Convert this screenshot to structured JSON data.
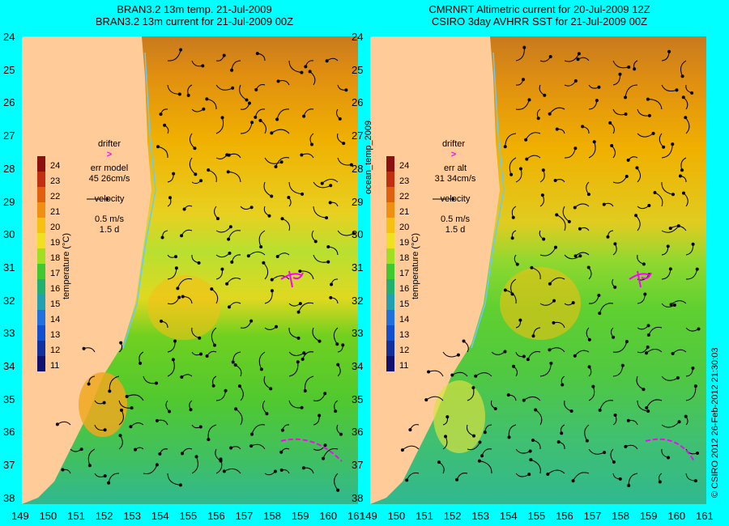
{
  "left": {
    "title_line1": "BRAN3.2 13m temp. 21-Jul-2009",
    "title_line2": "BRAN3.2 13m current for 21-Jul-2009 00Z",
    "drifter_label": "drifter",
    "err_label": "err model",
    "err_values": "45 26cm/s",
    "velocity_label": "velocity",
    "velocity_scale": "0.5 m/s",
    "velocity_time": "1.5 d"
  },
  "right": {
    "title_line1": "CMRNRT Altimetric current for 20-Jul-2009 12Z",
    "title_line2": "CSIRO 3day AVHRR SST for 21-Jul-2009 00Z",
    "drifter_label": "drifter",
    "err_label": "err alt",
    "err_values": "31 34cm/s",
    "velocity_label": "velocity",
    "velocity_scale": "0.5 m/s",
    "velocity_time": "1.5 d"
  },
  "center_label": "ocean_temp_2009",
  "credit": "© CSIRO 2012   26-Feb-2012 21:30:03",
  "colorbar": {
    "label": "temperature (°C)",
    "ticks": [
      "24",
      "23",
      "22",
      "21",
      "20",
      "19",
      "18",
      "17",
      "16",
      "15",
      "14",
      "13",
      "12",
      "11"
    ]
  },
  "lat_ticks": [
    "24",
    "25",
    "26",
    "27",
    "28",
    "29",
    "30",
    "31",
    "32",
    "33",
    "34",
    "35",
    "36",
    "37",
    "38"
  ],
  "lon_ticks": [
    "149",
    "150",
    "151",
    "152",
    "153",
    "154",
    "155",
    "156",
    "157",
    "158",
    "159",
    "160",
    "161"
  ],
  "colors": {
    "background": "#00ffff",
    "land": "#ffcc99",
    "drifter": "#ff00ff",
    "coast_line": "#66ccff"
  }
}
